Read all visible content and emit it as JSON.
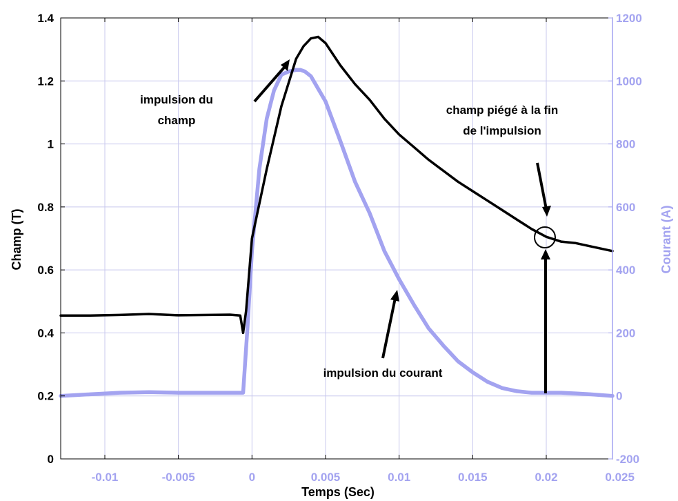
{
  "chart_data": {
    "type": "line",
    "xlabel": "Temps (Sec)",
    "ylabel": "Champ (T)",
    "ylabel_right": "Courant (A)",
    "xlim": [
      -0.013,
      0.0245
    ],
    "ylim": [
      0,
      1.4
    ],
    "ylim_right": [
      -200,
      1200
    ],
    "x_ticks": [
      -0.01,
      -0.005,
      0,
      0.005,
      0.01,
      0.015,
      0.02,
      0.025
    ],
    "x_tick_labels": [
      "-0.01",
      "-0.005",
      "0",
      "0.005",
      "0.01",
      "0.015",
      "0.02",
      "0.025"
    ],
    "y_ticks": [
      0,
      0.2,
      0.4,
      0.6,
      0.8,
      1,
      1.2,
      1.4
    ],
    "y_tick_labels": [
      "0",
      "0.2",
      "0.4",
      "0.6",
      "0.8",
      "1",
      "1.2",
      "1.4"
    ],
    "y_ticks_right": [
      -200,
      0,
      200,
      400,
      600,
      800,
      1000,
      1200
    ],
    "y_tick_labels_right": [
      "-200",
      "0",
      "200",
      "400",
      "600",
      "800",
      "1000",
      "1200"
    ],
    "grid": true,
    "colors": {
      "champ": "#000000",
      "courant": "#a3a3f0",
      "grid": "#c8c8ee"
    },
    "series": [
      {
        "axis": "left",
        "x": [
          -0.013,
          -0.011,
          -0.009,
          -0.007,
          -0.005,
          -0.003,
          -0.0015,
          -0.0008,
          -0.0006,
          -0.0004,
          0,
          0.001,
          0.002,
          0.003,
          0.0035,
          0.004,
          0.0045,
          0.005,
          0.006,
          0.007,
          0.008,
          0.009,
          0.01,
          0.011,
          0.012,
          0.013,
          0.014,
          0.015,
          0.016,
          0.017,
          0.018,
          0.019,
          0.02,
          0.021,
          0.022,
          0.023,
          0.0245
        ],
        "y": [
          0.455,
          0.455,
          0.457,
          0.46,
          0.456,
          0.457,
          0.458,
          0.455,
          0.4,
          0.47,
          0.7,
          0.92,
          1.12,
          1.27,
          1.31,
          1.335,
          1.34,
          1.32,
          1.25,
          1.19,
          1.14,
          1.08,
          1.03,
          0.99,
          0.95,
          0.915,
          0.88,
          0.85,
          0.82,
          0.79,
          0.76,
          0.73,
          0.705,
          0.69,
          0.685,
          0.675,
          0.66
        ]
      },
      {
        "axis": "right",
        "x": [
          -0.013,
          -0.011,
          -0.009,
          -0.007,
          -0.005,
          -0.003,
          -0.001,
          -0.0006,
          -0.0003,
          0,
          0.0005,
          0.001,
          0.0015,
          0.002,
          0.0025,
          0.003,
          0.0033,
          0.0036,
          0.004,
          0.005,
          0.006,
          0.007,
          0.008,
          0.009,
          0.01,
          0.011,
          0.012,
          0.013,
          0.014,
          0.015,
          0.016,
          0.017,
          0.018,
          0.019,
          0.02,
          0.021,
          0.022,
          0.023,
          0.0245
        ],
        "y": [
          0,
          5,
          10,
          12,
          10,
          10,
          10,
          10,
          220,
          460,
          720,
          880,
          970,
          1020,
          1030,
          1035,
          1035,
          1030,
          1015,
          935,
          810,
          680,
          580,
          460,
          370,
          290,
          215,
          160,
          110,
          75,
          45,
          25,
          15,
          10,
          10,
          10,
          8,
          5,
          0
        ]
      }
    ],
    "annotations": [
      {
        "lines": [
          "impulsion du",
          "champ"
        ]
      },
      {
        "lines": [
          "champ piégé à la fin",
          "de l'impulsion"
        ]
      },
      {
        "lines": [
          "impulsion du courant"
        ]
      }
    ]
  }
}
